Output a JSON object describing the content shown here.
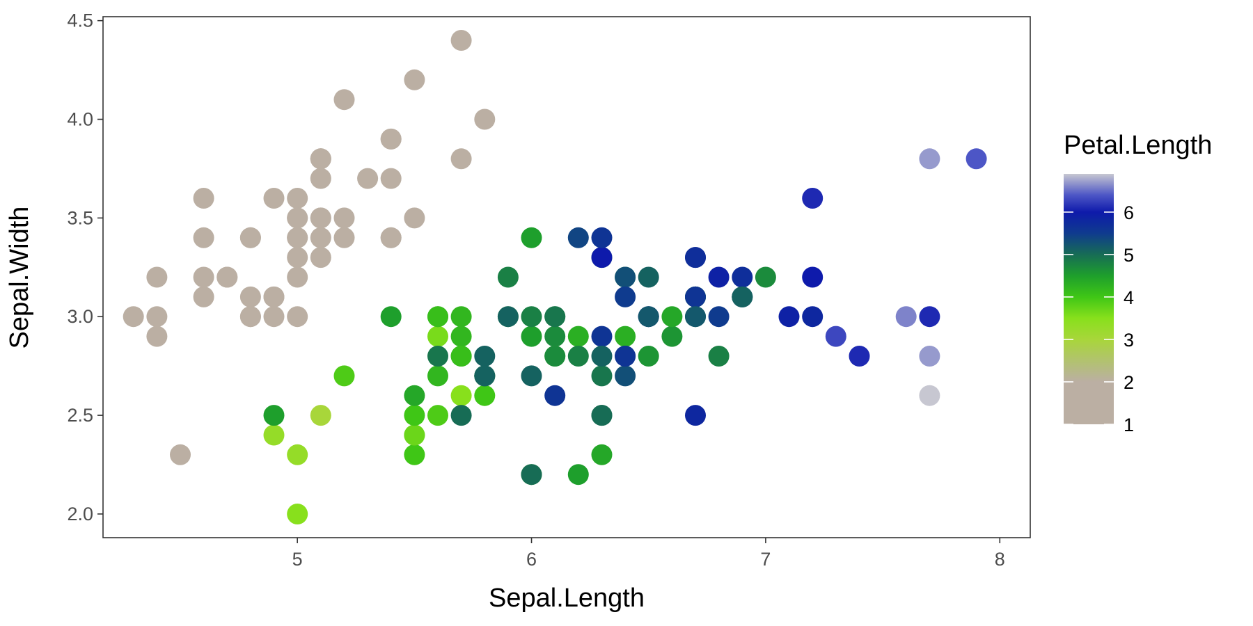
{
  "chart_data": {
    "type": "scatter",
    "title": "",
    "xlabel": "Sepal.Length",
    "ylabel": "Sepal.Width",
    "xlim": [
      4.17,
      8.13
    ],
    "ylim": [
      1.88,
      4.52
    ],
    "x_ticks": [
      5,
      6,
      7,
      8
    ],
    "x_tick_labels": [
      "5",
      "6",
      "7",
      "8"
    ],
    "y_ticks": [
      2.0,
      2.5,
      3.0,
      3.5,
      4.0,
      4.5
    ],
    "y_tick_labels": [
      "2.0",
      "2.5",
      "3.0",
      "3.5",
      "4.0",
      "4.5"
    ],
    "grid": false,
    "legend": {
      "title": "Petal.Length",
      "placement": "right",
      "type": "colorbar",
      "range": [
        1.0,
        6.9
      ],
      "breaks": [
        1,
        2,
        3,
        4,
        5,
        6
      ],
      "break_labels": [
        "1",
        "2",
        "3",
        "4",
        "5",
        "6"
      ]
    },
    "color_scale": [
      {
        "value": 1.0,
        "color": "#bbafa3"
      },
      {
        "value": 2.0,
        "color": "#bbafa3"
      },
      {
        "value": 3.0,
        "color": "#a8d63a"
      },
      {
        "value": 3.5,
        "color": "#88e01c"
      },
      {
        "value": 4.0,
        "color": "#3fc616"
      },
      {
        "value": 4.5,
        "color": "#1e9f2c"
      },
      {
        "value": 5.0,
        "color": "#176c55"
      },
      {
        "value": 5.5,
        "color": "#0f3b8e"
      },
      {
        "value": 6.0,
        "color": "#0e1aab"
      },
      {
        "value": 6.4,
        "color": "#4d56c6"
      },
      {
        "value": 6.9,
        "color": "#c7c7d1"
      }
    ],
    "points": [
      {
        "x": 5.1,
        "y": 3.5,
        "color": 1.4
      },
      {
        "x": 4.9,
        "y": 3.0,
        "color": 1.4
      },
      {
        "x": 4.7,
        "y": 3.2,
        "color": 1.3
      },
      {
        "x": 4.6,
        "y": 3.1,
        "color": 1.5
      },
      {
        "x": 5.0,
        "y": 3.6,
        "color": 1.4
      },
      {
        "x": 5.4,
        "y": 3.9,
        "color": 1.7
      },
      {
        "x": 4.6,
        "y": 3.4,
        "color": 1.4
      },
      {
        "x": 5.0,
        "y": 3.4,
        "color": 1.5
      },
      {
        "x": 4.4,
        "y": 2.9,
        "color": 1.4
      },
      {
        "x": 4.9,
        "y": 3.1,
        "color": 1.5
      },
      {
        "x": 5.4,
        "y": 3.7,
        "color": 1.5
      },
      {
        "x": 4.8,
        "y": 3.4,
        "color": 1.6
      },
      {
        "x": 4.8,
        "y": 3.0,
        "color": 1.4
      },
      {
        "x": 4.3,
        "y": 3.0,
        "color": 1.1
      },
      {
        "x": 5.8,
        "y": 4.0,
        "color": 1.2
      },
      {
        "x": 5.7,
        "y": 4.4,
        "color": 1.5
      },
      {
        "x": 5.4,
        "y": 3.9,
        "color": 1.3
      },
      {
        "x": 5.1,
        "y": 3.5,
        "color": 1.4
      },
      {
        "x": 5.7,
        "y": 3.8,
        "color": 1.7
      },
      {
        "x": 5.1,
        "y": 3.8,
        "color": 1.5
      },
      {
        "x": 5.4,
        "y": 3.4,
        "color": 1.7
      },
      {
        "x": 5.1,
        "y": 3.7,
        "color": 1.5
      },
      {
        "x": 4.6,
        "y": 3.6,
        "color": 1.0
      },
      {
        "x": 5.1,
        "y": 3.3,
        "color": 1.7
      },
      {
        "x": 4.8,
        "y": 3.4,
        "color": 1.9
      },
      {
        "x": 5.0,
        "y": 3.0,
        "color": 1.6
      },
      {
        "x": 5.0,
        "y": 3.4,
        "color": 1.6
      },
      {
        "x": 5.2,
        "y": 3.5,
        "color": 1.5
      },
      {
        "x": 5.2,
        "y": 3.4,
        "color": 1.4
      },
      {
        "x": 4.7,
        "y": 3.2,
        "color": 1.6
      },
      {
        "x": 4.8,
        "y": 3.1,
        "color": 1.6
      },
      {
        "x": 5.4,
        "y": 3.4,
        "color": 1.5
      },
      {
        "x": 5.2,
        "y": 4.1,
        "color": 1.5
      },
      {
        "x": 5.5,
        "y": 4.2,
        "color": 1.4
      },
      {
        "x": 4.9,
        "y": 3.1,
        "color": 1.5
      },
      {
        "x": 5.0,
        "y": 3.2,
        "color": 1.2
      },
      {
        "x": 5.5,
        "y": 3.5,
        "color": 1.3
      },
      {
        "x": 4.9,
        "y": 3.6,
        "color": 1.4
      },
      {
        "x": 4.4,
        "y": 3.0,
        "color": 1.3
      },
      {
        "x": 5.1,
        "y": 3.4,
        "color": 1.5
      },
      {
        "x": 5.0,
        "y": 3.5,
        "color": 1.3
      },
      {
        "x": 4.5,
        "y": 2.3,
        "color": 1.3
      },
      {
        "x": 4.4,
        "y": 3.2,
        "color": 1.3
      },
      {
        "x": 5.0,
        "y": 3.5,
        "color": 1.6
      },
      {
        "x": 5.1,
        "y": 3.8,
        "color": 1.9
      },
      {
        "x": 4.8,
        "y": 3.0,
        "color": 1.4
      },
      {
        "x": 5.1,
        "y": 3.8,
        "color": 1.6
      },
      {
        "x": 4.6,
        "y": 3.2,
        "color": 1.4
      },
      {
        "x": 5.3,
        "y": 3.7,
        "color": 1.5
      },
      {
        "x": 5.0,
        "y": 3.3,
        "color": 1.4
      },
      {
        "x": 7.0,
        "y": 3.2,
        "color": 4.7
      },
      {
        "x": 6.4,
        "y": 3.2,
        "color": 4.5
      },
      {
        "x": 6.9,
        "y": 3.1,
        "color": 4.9
      },
      {
        "x": 5.5,
        "y": 2.3,
        "color": 4.0
      },
      {
        "x": 6.5,
        "y": 2.8,
        "color": 4.6
      },
      {
        "x": 5.7,
        "y": 2.8,
        "color": 4.5
      },
      {
        "x": 6.3,
        "y": 3.3,
        "color": 4.7
      },
      {
        "x": 4.9,
        "y": 2.4,
        "color": 3.3
      },
      {
        "x": 6.6,
        "y": 2.9,
        "color": 4.6
      },
      {
        "x": 5.2,
        "y": 2.7,
        "color": 3.9
      },
      {
        "x": 5.0,
        "y": 2.0,
        "color": 3.5
      },
      {
        "x": 5.9,
        "y": 3.0,
        "color": 4.2
      },
      {
        "x": 6.0,
        "y": 2.2,
        "color": 4.0
      },
      {
        "x": 6.1,
        "y": 2.9,
        "color": 4.7
      },
      {
        "x": 5.6,
        "y": 2.9,
        "color": 3.6
      },
      {
        "x": 6.7,
        "y": 3.1,
        "color": 4.4
      },
      {
        "x": 5.6,
        "y": 3.0,
        "color": 4.5
      },
      {
        "x": 5.8,
        "y": 2.7,
        "color": 4.1
      },
      {
        "x": 6.2,
        "y": 2.2,
        "color": 4.5
      },
      {
        "x": 5.6,
        "y": 2.5,
        "color": 3.9
      },
      {
        "x": 5.9,
        "y": 3.2,
        "color": 4.8
      },
      {
        "x": 6.1,
        "y": 2.8,
        "color": 4.0
      },
      {
        "x": 6.3,
        "y": 2.5,
        "color": 4.9
      },
      {
        "x": 6.1,
        "y": 2.8,
        "color": 4.7
      },
      {
        "x": 6.4,
        "y": 2.9,
        "color": 4.3
      },
      {
        "x": 6.6,
        "y": 3.0,
        "color": 4.4
      },
      {
        "x": 6.8,
        "y": 2.8,
        "color": 4.8
      },
      {
        "x": 6.7,
        "y": 3.0,
        "color": 5.0
      },
      {
        "x": 6.0,
        "y": 2.9,
        "color": 4.5
      },
      {
        "x": 5.7,
        "y": 2.6,
        "color": 3.5
      },
      {
        "x": 5.5,
        "y": 2.4,
        "color": 3.8
      },
      {
        "x": 5.5,
        "y": 2.4,
        "color": 3.7
      },
      {
        "x": 5.8,
        "y": 2.7,
        "color": 3.9
      },
      {
        "x": 6.0,
        "y": 2.7,
        "color": 5.1
      },
      {
        "x": 5.4,
        "y": 3.0,
        "color": 4.5
      },
      {
        "x": 6.0,
        "y": 3.4,
        "color": 4.5
      },
      {
        "x": 6.7,
        "y": 3.1,
        "color": 4.7
      },
      {
        "x": 6.3,
        "y": 2.3,
        "color": 4.4
      },
      {
        "x": 5.6,
        "y": 3.0,
        "color": 4.1
      },
      {
        "x": 5.5,
        "y": 2.5,
        "color": 4.0
      },
      {
        "x": 5.5,
        "y": 2.6,
        "color": 4.4
      },
      {
        "x": 6.1,
        "y": 3.0,
        "color": 4.6
      },
      {
        "x": 5.8,
        "y": 2.6,
        "color": 4.0
      },
      {
        "x": 5.0,
        "y": 2.3,
        "color": 3.3
      },
      {
        "x": 5.6,
        "y": 2.7,
        "color": 4.2
      },
      {
        "x": 5.7,
        "y": 3.0,
        "color": 4.2
      },
      {
        "x": 5.7,
        "y": 2.9,
        "color": 4.2
      },
      {
        "x": 6.2,
        "y": 2.9,
        "color": 4.3
      },
      {
        "x": 5.1,
        "y": 2.5,
        "color": 3.0
      },
      {
        "x": 5.7,
        "y": 2.8,
        "color": 4.1
      },
      {
        "x": 6.3,
        "y": 3.3,
        "color": 6.0
      },
      {
        "x": 5.8,
        "y": 2.7,
        "color": 5.1
      },
      {
        "x": 7.1,
        "y": 3.0,
        "color": 5.9
      },
      {
        "x": 6.3,
        "y": 2.9,
        "color": 5.6
      },
      {
        "x": 6.5,
        "y": 3.0,
        "color": 5.8
      },
      {
        "x": 7.6,
        "y": 3.0,
        "color": 6.6
      },
      {
        "x": 4.9,
        "y": 2.5,
        "color": 4.5
      },
      {
        "x": 7.3,
        "y": 2.9,
        "color": 6.3
      },
      {
        "x": 6.7,
        "y": 2.5,
        "color": 5.8
      },
      {
        "x": 7.2,
        "y": 3.6,
        "color": 6.1
      },
      {
        "x": 6.5,
        "y": 3.2,
        "color": 5.1
      },
      {
        "x": 6.4,
        "y": 2.7,
        "color": 5.3
      },
      {
        "x": 6.8,
        "y": 3.0,
        "color": 5.5
      },
      {
        "x": 5.7,
        "y": 2.5,
        "color": 5.0
      },
      {
        "x": 5.8,
        "y": 2.8,
        "color": 5.1
      },
      {
        "x": 6.4,
        "y": 3.2,
        "color": 5.3
      },
      {
        "x": 6.5,
        "y": 3.0,
        "color": 5.5
      },
      {
        "x": 7.7,
        "y": 3.8,
        "color": 6.7
      },
      {
        "x": 7.7,
        "y": 2.6,
        "color": 6.9
      },
      {
        "x": 6.0,
        "y": 2.2,
        "color": 5.0
      },
      {
        "x": 6.9,
        "y": 3.2,
        "color": 5.7
      },
      {
        "x": 5.6,
        "y": 2.8,
        "color": 4.9
      },
      {
        "x": 7.7,
        "y": 2.8,
        "color": 6.7
      },
      {
        "x": 6.3,
        "y": 2.7,
        "color": 4.9
      },
      {
        "x": 6.7,
        "y": 3.3,
        "color": 5.7
      },
      {
        "x": 7.2,
        "y": 3.2,
        "color": 6.0
      },
      {
        "x": 6.2,
        "y": 2.8,
        "color": 4.8
      },
      {
        "x": 6.1,
        "y": 3.0,
        "color": 4.9
      },
      {
        "x": 6.4,
        "y": 2.8,
        "color": 5.6
      },
      {
        "x": 7.2,
        "y": 3.0,
        "color": 5.8
      },
      {
        "x": 7.4,
        "y": 2.8,
        "color": 6.1
      },
      {
        "x": 7.9,
        "y": 3.8,
        "color": 6.4
      },
      {
        "x": 6.4,
        "y": 2.8,
        "color": 5.6
      },
      {
        "x": 6.3,
        "y": 2.8,
        "color": 5.1
      },
      {
        "x": 6.1,
        "y": 2.6,
        "color": 5.6
      },
      {
        "x": 7.7,
        "y": 3.0,
        "color": 6.1
      },
      {
        "x": 6.3,
        "y": 3.4,
        "color": 5.6
      },
      {
        "x": 6.4,
        "y": 3.1,
        "color": 5.5
      },
      {
        "x": 6.0,
        "y": 3.0,
        "color": 4.8
      },
      {
        "x": 6.9,
        "y": 3.1,
        "color": 5.4
      },
      {
        "x": 6.7,
        "y": 3.1,
        "color": 5.6
      },
      {
        "x": 6.9,
        "y": 3.1,
        "color": 5.1
      },
      {
        "x": 5.8,
        "y": 2.7,
        "color": 5.1
      },
      {
        "x": 6.8,
        "y": 3.2,
        "color": 5.9
      },
      {
        "x": 6.7,
        "y": 3.3,
        "color": 5.7
      },
      {
        "x": 6.7,
        "y": 3.0,
        "color": 5.2
      },
      {
        "x": 6.3,
        "y": 2.5,
        "color": 5.0
      },
      {
        "x": 6.5,
        "y": 3.0,
        "color": 5.2
      },
      {
        "x": 6.2,
        "y": 3.4,
        "color": 5.4
      },
      {
        "x": 5.9,
        "y": 3.0,
        "color": 5.1
      }
    ]
  }
}
